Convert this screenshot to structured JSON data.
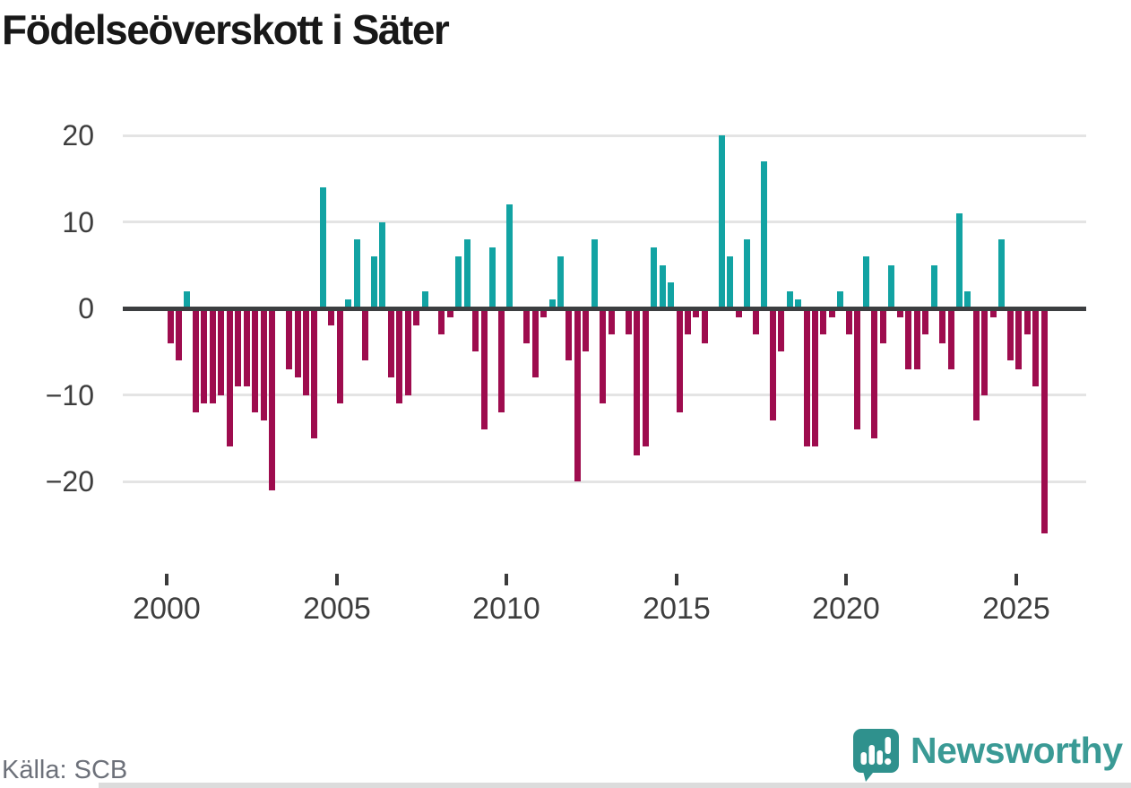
{
  "title": "Födelseöverskott i Säter",
  "source": "Källa: SCB",
  "brand": {
    "name": "Newsworthy",
    "icon": "newsworthy-speech-bubble-chart-icon"
  },
  "chart_data": {
    "type": "bar",
    "title": "Födelseöverskott i Säter",
    "period": "quarterly",
    "range": "2000 Q1 – 2025 Q4",
    "xlabel": "",
    "ylabel": "",
    "x_ticks": [
      "2000",
      "2005",
      "2010",
      "2015",
      "2020",
      "2025"
    ],
    "y_ticks": [
      "20",
      "10",
      "0",
      "−10",
      "−20"
    ],
    "y_tick_values": [
      20,
      10,
      0,
      -10,
      -20
    ],
    "ylim": [
      -27,
      21
    ],
    "grid": "horizontal",
    "legend": "none",
    "colors": {
      "positive": "#12a3a3",
      "negative": "#9e0c4e",
      "grid": "#e4e4e4",
      "zero_line": "#3c3e40",
      "axis_text": "#3d3d3d",
      "title_text": "#181818",
      "source_text": "#6d717a",
      "brand_teal": "#3a9a95"
    },
    "series": [
      {
        "name": "Födelseöverskott",
        "by_year": [
          {
            "year": 2000,
            "values": [
              -4,
              -6,
              2,
              -12
            ]
          },
          {
            "year": 2001,
            "values": [
              -11,
              -11,
              -10,
              -16
            ]
          },
          {
            "year": 2002,
            "values": [
              -9,
              -9,
              -12,
              -13
            ]
          },
          {
            "year": 2003,
            "values": [
              -21,
              0,
              -7,
              -8
            ]
          },
          {
            "year": 2004,
            "values": [
              -10,
              -15,
              14,
              -2
            ]
          },
          {
            "year": 2005,
            "values": [
              -11,
              1,
              8,
              -6
            ]
          },
          {
            "year": 2006,
            "values": [
              6,
              10,
              -8,
              -11
            ]
          },
          {
            "year": 2007,
            "values": [
              -10,
              -2,
              2,
              0
            ]
          },
          {
            "year": 2008,
            "values": [
              -3,
              -1,
              6,
              8
            ]
          },
          {
            "year": 2009,
            "values": [
              -5,
              -14,
              7,
              -12
            ]
          },
          {
            "year": 2010,
            "values": [
              12,
              0,
              -4,
              -8
            ]
          },
          {
            "year": 2011,
            "values": [
              -1,
              1,
              6,
              -6
            ]
          },
          {
            "year": 2012,
            "values": [
              -20,
              -5,
              8,
              -11
            ]
          },
          {
            "year": 2013,
            "values": [
              -3,
              0,
              -3,
              -17
            ]
          },
          {
            "year": 2014,
            "values": [
              -16,
              7,
              5,
              3
            ]
          },
          {
            "year": 2015,
            "values": [
              -12,
              -3,
              -1,
              -4
            ]
          },
          {
            "year": 2016,
            "values": [
              0,
              20,
              6,
              -1
            ]
          },
          {
            "year": 2017,
            "values": [
              8,
              -3,
              17,
              -13
            ]
          },
          {
            "year": 2018,
            "values": [
              -5,
              2,
              1,
              -16
            ]
          },
          {
            "year": 2019,
            "values": [
              -16,
              -3,
              -1,
              2
            ]
          },
          {
            "year": 2020,
            "values": [
              -3,
              -14,
              6,
              -15
            ]
          },
          {
            "year": 2021,
            "values": [
              -4,
              5,
              -1,
              -7
            ]
          },
          {
            "year": 2022,
            "values": [
              -7,
              -3,
              5,
              -4
            ]
          },
          {
            "year": 2023,
            "values": [
              -7,
              11,
              2,
              -13
            ]
          },
          {
            "year": 2024,
            "values": [
              -10,
              -1,
              8,
              -6
            ]
          },
          {
            "year": 2025,
            "values": [
              -7,
              -3,
              -9,
              -26
            ]
          }
        ]
      }
    ]
  }
}
